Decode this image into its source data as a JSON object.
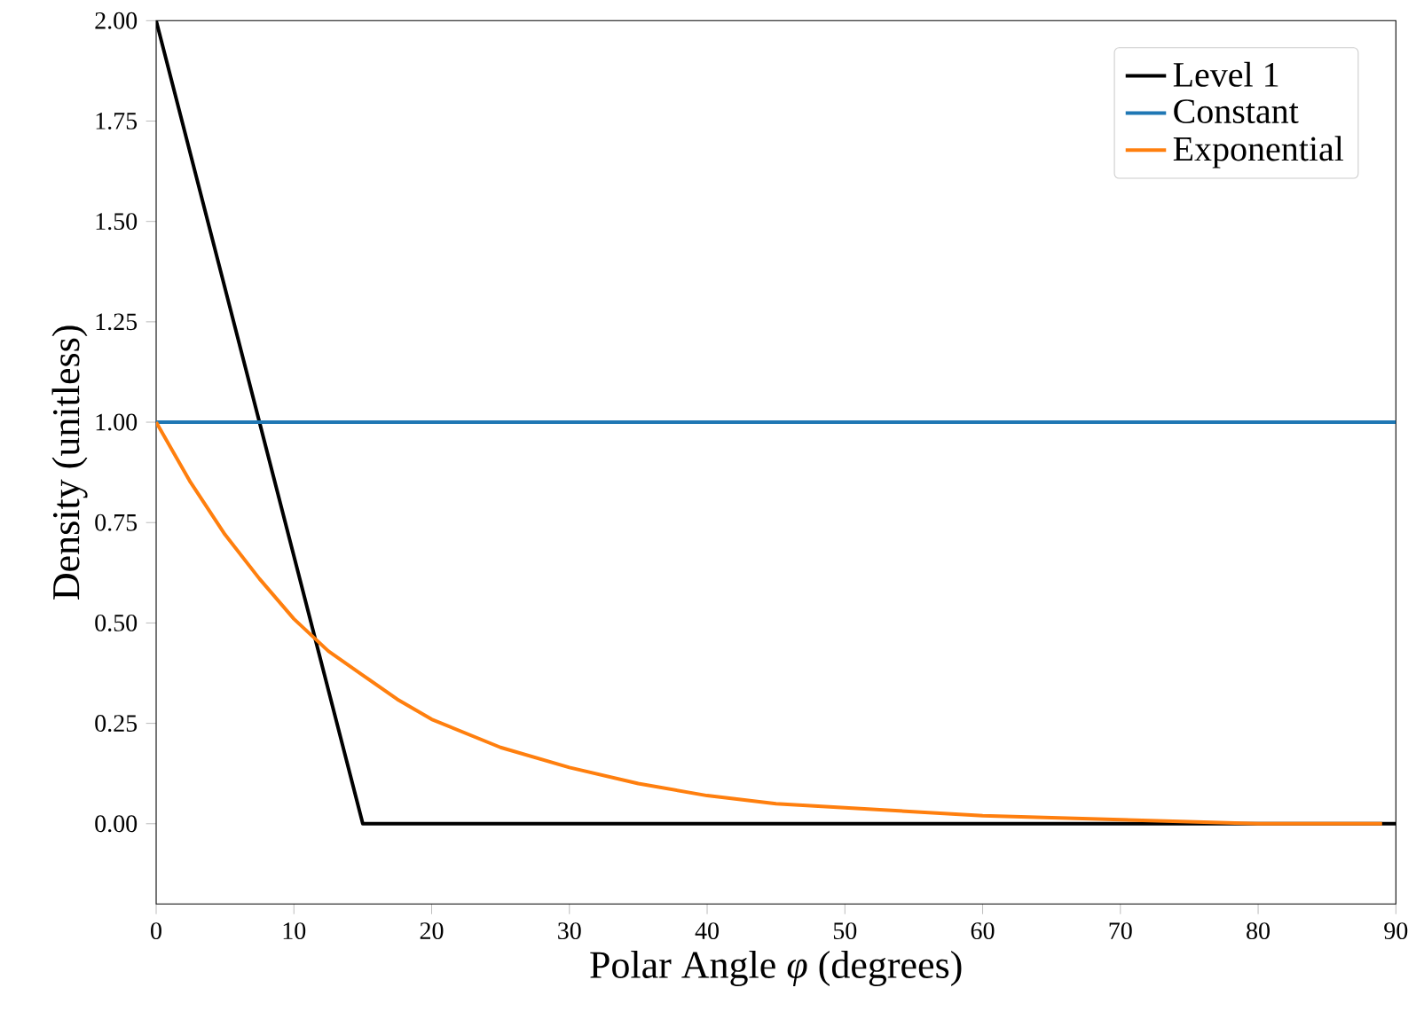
{
  "chart_data": {
    "type": "line",
    "xlabel": "Polar Angle *φ* (degrees)",
    "ylabel": "Density (unitless)",
    "xlim": [
      0,
      90
    ],
    "ylim": [
      -0.2,
      2.0
    ],
    "xticks": [
      0,
      10,
      20,
      30,
      40,
      50,
      60,
      70,
      80,
      90
    ],
    "yticks": [
      {
        "value": 0,
        "label": "0.00"
      },
      {
        "value": 0.25,
        "label": "0.25"
      },
      {
        "value": 0.5,
        "label": "0.50"
      },
      {
        "value": 0.75,
        "label": "0.75"
      },
      {
        "value": 1,
        "label": "1.00"
      },
      {
        "value": 1.25,
        "label": "1.25"
      },
      {
        "value": 1.5,
        "label": "1.50"
      },
      {
        "value": 1.75,
        "label": "1.75"
      },
      {
        "value": 2,
        "label": "2.00"
      }
    ],
    "grid": false,
    "legend": "top right",
    "marker": "none",
    "line_style": "solid",
    "series": [
      {
        "name": "Level 1",
        "color": "#000000",
        "x": [
          0,
          15,
          90
        ],
        "values": [
          2,
          0,
          0
        ]
      },
      {
        "name": "Constant",
        "color": "#1f77b4",
        "x": [
          0,
          90
        ],
        "values": [
          1,
          1
        ]
      },
      {
        "name": "Exponential",
        "color": "#ff7f0e",
        "x": [
          0,
          2.5,
          5,
          7.5,
          10,
          12.5,
          15,
          17.5,
          20,
          25,
          30,
          35,
          40,
          45,
          50,
          60,
          70,
          80,
          89
        ],
        "values": [
          1,
          0.85,
          0.72,
          0.61,
          0.51,
          0.43,
          0.37,
          0.31,
          0.26,
          0.19,
          0.14,
          0.1,
          0.07,
          0.05,
          0.04,
          0.02,
          0.01,
          0.0,
          0.0
        ]
      }
    ]
  }
}
